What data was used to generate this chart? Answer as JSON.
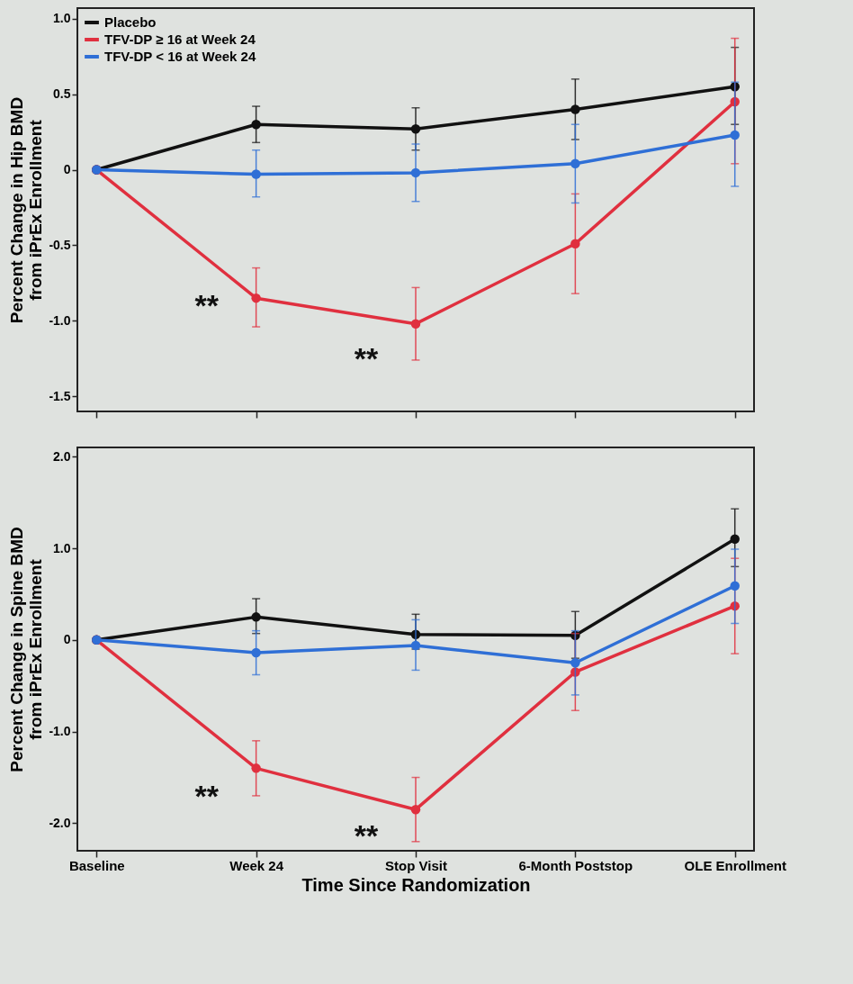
{
  "chart_data": [
    {
      "type": "line",
      "ylabel": "Percent  Change in Hip BMD\nfrom iPrEx Enrollment",
      "categories": [
        "Baseline",
        "Week 24",
        "Stop Visit",
        "6-Month Poststop",
        "OLE Enrollment"
      ],
      "series": [
        {
          "name": "Placebo",
          "color": "#111111",
          "values": [
            0,
            0.3,
            0.27,
            0.4,
            0.55
          ],
          "errors": [
            null,
            [
              0.18,
              0.42
            ],
            [
              0.13,
              0.41
            ],
            [
              0.2,
              0.6
            ],
            [
              0.3,
              0.81
            ]
          ]
        },
        {
          "name": "TFV-DP ≥ 16 at Week 24",
          "color": "#e0303f",
          "values": [
            0,
            -0.85,
            -1.02,
            -0.49,
            0.45
          ],
          "errors": [
            null,
            [
              -1.04,
              -0.65
            ],
            [
              -1.26,
              -0.78
            ],
            [
              -0.82,
              -0.16
            ],
            [
              0.04,
              0.87
            ]
          ]
        },
        {
          "name": "TFV-DP < 16 at Week 24",
          "color": "#2f6fd6",
          "values": [
            0,
            -0.03,
            -0.02,
            0.04,
            0.23
          ],
          "errors": [
            null,
            [
              -0.18,
              0.13
            ],
            [
              -0.21,
              0.17
            ],
            [
              -0.22,
              0.3
            ],
            [
              -0.11,
              0.58
            ]
          ]
        }
      ],
      "ylim": [
        -1.6,
        1.07
      ],
      "yticks": [
        {
          "value": 1,
          "label": "1.0"
        },
        0.5,
        0,
        -0.5,
        {
          "value": -1,
          "label": "-1.0"
        },
        -1.5
      ],
      "annotations": [
        {
          "text": "**",
          "x": "Week 24",
          "y": -0.85
        },
        {
          "text": "**",
          "x": "Stop Visit",
          "y": -1.2
        }
      ],
      "marker": "circle",
      "legend": "top left",
      "grid": false,
      "tick_labels": "y"
    },
    {
      "type": "line",
      "xlabel": "Time Since Randomization",
      "ylabel": "Percent  Change in Spine BMD\nfrom iPrEx Enrollment",
      "categories": [
        "Baseline",
        "Week 24",
        "Stop Visit",
        "6-Month Poststop",
        "OLE Enrollment"
      ],
      "series": [
        {
          "color": "#111111",
          "values": [
            0,
            0.25,
            0.06,
            0.05,
            1.1
          ],
          "errors": [
            null,
            [
              0.07,
              0.45
            ],
            [
              -0.1,
              0.28
            ],
            [
              -0.2,
              0.31
            ],
            [
              0.8,
              1.43
            ]
          ]
        },
        {
          "color": "#e0303f",
          "values": [
            0,
            -1.4,
            -1.85,
            -0.35,
            0.37
          ],
          "errors": [
            null,
            [
              -1.7,
              -1.1
            ],
            [
              -2.2,
              -1.5
            ],
            [
              -0.77,
              0.07
            ],
            [
              -0.15,
              0.89
            ]
          ]
        },
        {
          "color": "#2f6fd6",
          "values": [
            0,
            -0.14,
            -0.06,
            -0.25,
            0.59
          ],
          "errors": [
            null,
            [
              -0.38,
              0.1
            ],
            [
              -0.33,
              0.22
            ],
            [
              -0.6,
              0.1
            ],
            [
              0.18,
              0.99
            ]
          ]
        }
      ],
      "ylim": [
        -2.3,
        2.1
      ],
      "yticks": [
        {
          "value": 2,
          "label": "2.0"
        },
        {
          "value": 1,
          "label": "1.0"
        },
        0,
        {
          "value": -1,
          "label": "-1.0"
        },
        {
          "value": -2,
          "label": "-2.0"
        }
      ],
      "annotations": [
        {
          "text": "**",
          "x": "Week 24",
          "y": -1.62
        },
        {
          "text": "**",
          "x": "Stop Visit",
          "y": -2.05
        }
      ],
      "marker": "circle",
      "legend": false,
      "grid": false
    }
  ]
}
